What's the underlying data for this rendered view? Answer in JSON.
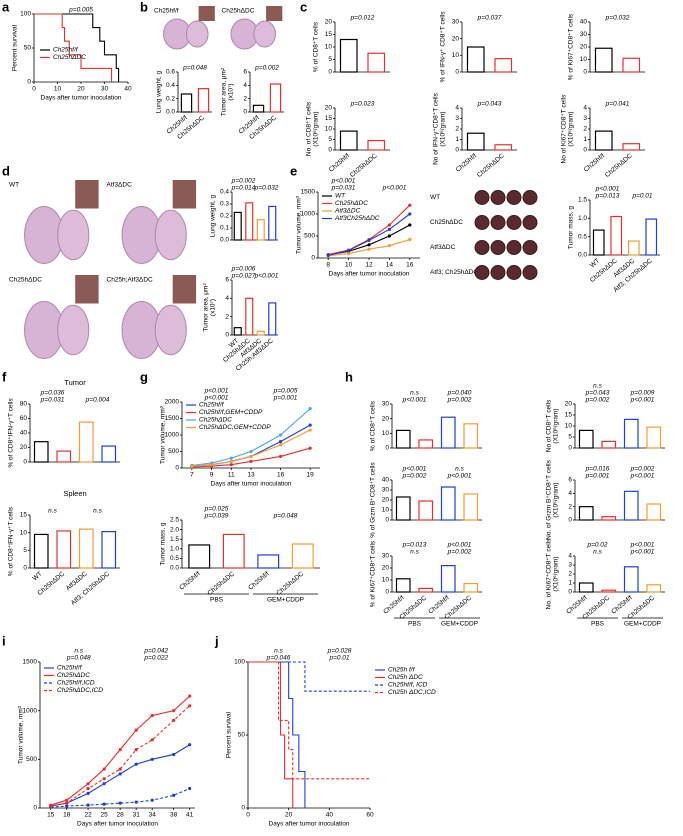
{
  "chart_data": [
    {
      "panel": "a",
      "type": "step",
      "ylabel": [
        "Percent survival"
      ],
      "xlabel": "Days after tumor inoculation",
      "xlim": [
        0,
        40
      ],
      "xticks": [
        0,
        10,
        20,
        30,
        40
      ],
      "ylim": [
        0,
        100
      ],
      "yticks": [
        0,
        50,
        100
      ],
      "annotations": [
        "p=0.005"
      ],
      "series": [
        {
          "name": "Ch25hf/f",
          "color": "#000000",
          "x": [
            0,
            25,
            28,
            30,
            35,
            36
          ],
          "values": [
            100,
            80,
            60,
            40,
            20,
            0
          ]
        },
        {
          "name": "Ch25hΔDC",
          "color": "#e8312f",
          "x": [
            0,
            12,
            13,
            15,
            20,
            33
          ],
          "values": [
            100,
            80,
            60,
            40,
            20,
            0
          ]
        }
      ]
    },
    {
      "panel": "b",
      "type": "image",
      "labels": [
        "Ch25hf/f",
        "Ch25hΔDC"
      ]
    },
    {
      "type": "bar",
      "ylabel": [
        "Lung weight, g"
      ],
      "categories": [
        "Ch25hf/f",
        "Ch25hΔDC"
      ],
      "values": [
        0.27,
        0.35
      ],
      "colors": [
        "#000000",
        "#e8312f"
      ],
      "ylim": [
        0,
        0.6
      ],
      "yticks": [
        {
          "value": 0,
          "label": "0.0"
        },
        0.2,
        0.4,
        0.6
      ],
      "annotations": [
        "p=0.048"
      ]
    },
    {
      "type": "bar",
      "ylabel": [
        "Tumor area, μm²",
        "(x10⁷)"
      ],
      "categories": [
        "Ch25hf/f",
        "Ch25hΔDC"
      ],
      "values": [
        1.0,
        4.2
      ],
      "colors": [
        "#000000",
        "#e8312f"
      ],
      "ylim": [
        0,
        6
      ],
      "yticks": [
        0,
        2,
        4,
        6
      ],
      "annotations": [
        "p=0.002"
      ]
    },
    {
      "panel": "c",
      "type": "bar",
      "ylabel": [
        "% of CD8⁺T cells"
      ],
      "values": [
        13,
        7.5
      ],
      "colors": [
        "#000000",
        "#e8312f"
      ],
      "ylim": [
        0,
        20
      ],
      "yticks": [
        0,
        5,
        10,
        15,
        20
      ],
      "annotations": [
        "p=0.012"
      ]
    },
    {
      "type": "bar",
      "ylabel": [
        "% of IFN-γ⁺ CD8⁺T cells"
      ],
      "values": [
        15,
        8
      ],
      "colors": [
        "#000000",
        "#e8312f"
      ],
      "ylim": [
        0,
        30
      ],
      "yticks": [
        0,
        10,
        20,
        30
      ],
      "annotations": [
        "p=0.037"
      ]
    },
    {
      "type": "bar",
      "ylabel": [
        "% of Ki67⁺CD8⁺T cells"
      ],
      "values": [
        19,
        11
      ],
      "colors": [
        "#000000",
        "#e8312f"
      ],
      "ylim": [
        0,
        40
      ],
      "yticks": [
        0,
        10,
        20,
        30,
        40
      ],
      "annotations": [
        "p=0.032"
      ]
    },
    {
      "type": "bar",
      "ylabel": [
        "No. of CD8⁺T cells",
        "(X10⁶/gram)"
      ],
      "categories": [
        "Ch25hf/f",
        "Ch25hΔDC"
      ],
      "values": [
        9,
        4.5
      ],
      "colors": [
        "#000000",
        "#e8312f"
      ],
      "ylim": [
        0,
        20
      ],
      "yticks": [
        0,
        5,
        10,
        15,
        20
      ],
      "annotations": [
        "p=0.023"
      ]
    },
    {
      "type": "bar",
      "ylabel": [
        "No of IFN-γ⁺CD8⁺T cells",
        "(X10⁶/gram)"
      ],
      "categories": [
        "Ch25hf/f",
        "Ch25hΔDC"
      ],
      "values": [
        1.6,
        0.5
      ],
      "colors": [
        "#000000",
        "#e8312f"
      ],
      "ylim": [
        0,
        4
      ],
      "yticks": [
        0,
        1,
        2,
        3,
        4
      ],
      "annotations": [
        "p=0.043"
      ]
    },
    {
      "type": "bar",
      "ylabel": [
        "No of Ki67⁺CD8⁺T cells",
        "(X10⁶/gram)"
      ],
      "categories": [
        "Ch25hf/f",
        "Ch25hΔDC"
      ],
      "values": [
        1.8,
        0.6
      ],
      "colors": [
        "#000000",
        "#e8312f"
      ],
      "ylim": [
        0,
        4
      ],
      "yticks": [
        0,
        1,
        2,
        3,
        4
      ],
      "annotations": [
        "p=0.041"
      ]
    },
    {
      "panel": "d",
      "type": "image",
      "labels": [
        "WT",
        "Atf3ΔDC",
        "Ch25hΔDC",
        "Ch25h;Atf3ΔDC"
      ]
    },
    {
      "type": "bar",
      "ylabel": [
        "Lung weight, g"
      ],
      "values": [
        0.23,
        0.31,
        0.17,
        0.28
      ],
      "colors": [
        "#000000",
        "#e8312f",
        "#f39c34",
        "#1f3fd6"
      ],
      "ylim": [
        0,
        0.4
      ],
      "yticks": [
        {
          "value": 0,
          "label": "0.0"
        },
        0.1,
        0.2,
        0.3,
        0.4
      ],
      "annotations": [
        "p=0.014",
        "p=0.032",
        "p=0.002"
      ]
    },
    {
      "type": "bar",
      "ylabel": [
        "Tumor area, μm²",
        "(x10⁷)"
      ],
      "categories": [
        "WT",
        "Ch25hΔDC",
        "Atf3ΔDC",
        "Ch25h;Atf3ΔDC"
      ],
      "values": [
        0.8,
        4.0,
        0.4,
        3.5
      ],
      "colors": [
        "#000000",
        "#e8312f",
        "#f39c34",
        "#1f3fd6"
      ],
      "ylim": [
        0,
        6
      ],
      "yticks": [
        0,
        2,
        4,
        6
      ],
      "annotations": [
        "p=0.027",
        "p<0.001",
        "p=0.006"
      ]
    },
    {
      "panel": "e",
      "type": "line",
      "ylabel": [
        "Tumor volume, mm³"
      ],
      "xlabel": "Days after tumor inoculation",
      "x": [
        8,
        10,
        12,
        14,
        16
      ],
      "xlim": [
        7,
        17
      ],
      "xticks": [
        8,
        10,
        12,
        14,
        16
      ],
      "ylim": [
        0,
        1500
      ],
      "yticks": [
        0,
        500,
        1000,
        1500
      ],
      "annotations": [
        "p=0.031",
        "p<0.001",
        "p<0.001"
      ],
      "series": [
        {
          "name": "WT",
          "color": "#000000",
          "values": [
            70,
            150,
            300,
            500,
            750
          ]
        },
        {
          "name": "Ch25hΔDC",
          "color": "#e8312f",
          "values": [
            80,
            180,
            420,
            750,
            1200
          ]
        },
        {
          "name": "Atf3ΔDC",
          "color": "#f39c34",
          "values": [
            50,
            100,
            200,
            280,
            420
          ]
        },
        {
          "name": "Atf3Ch25hΔDC",
          "color": "#1f3fd6",
          "values": [
            60,
            170,
            400,
            650,
            1000
          ]
        }
      ]
    },
    {
      "type": "image",
      "labels": [
        "WT",
        "Ch25hΔDC",
        "Atf3ΔDC",
        "Atf3; Ch25hΔDC"
      ]
    },
    {
      "type": "bar",
      "ylabel": [
        "Tumor mass, g"
      ],
      "categories": [
        "WT",
        "Ch25hΔDC",
        "Atf3ΔDC",
        "Atf3; Ch25hΔDC"
      ],
      "values": [
        0.68,
        1.05,
        0.38,
        0.98
      ],
      "colors": [
        "#000000",
        "#e8312f",
        "#f39c34",
        "#1f3fd6"
      ],
      "ylim": [
        0,
        1.5
      ],
      "yticks": [
        {
          "value": 0,
          "label": "0.0"
        },
        0.5,
        {
          "value": 1,
          "label": "1.0"
        },
        1.5
      ],
      "annotations": [
        "p=0.013",
        "p=0.01",
        "p<0.001"
      ]
    },
    {
      "panel": "f",
      "type": "bar",
      "title": "Tumor",
      "ylabel": [
        "% of CD8⁺IFN-γ⁺T cells"
      ],
      "values": [
        28,
        15,
        55,
        22
      ],
      "colors": [
        "#000000",
        "#e8312f",
        "#f39c34",
        "#1f3fd6"
      ],
      "ylim": [
        0,
        80
      ],
      "yticks": [
        0,
        20,
        40,
        60,
        80
      ],
      "annotations": [
        "p=0.031",
        "p=0.004",
        "p=0.036"
      ]
    },
    {
      "type": "bar",
      "title": "Spleen",
      "ylabel": [
        "% of CD8⁺IFN-γ⁺T cells"
      ],
      "categories": [
        "WT",
        "Ch25hΔDC",
        "Atf3ΔDC",
        "Atf3; Ch25hΔDC"
      ],
      "values": [
        9.5,
        10.5,
        11,
        10.3
      ],
      "colors": [
        "#000000",
        "#e8312f",
        "#f39c34",
        "#1f3fd6"
      ],
      "ylim": [
        0,
        15
      ],
      "yticks": [
        0,
        5,
        10,
        15
      ],
      "annotations": [
        "n.s",
        "n.s"
      ]
    },
    {
      "panel": "g",
      "type": "line",
      "ylabel": [
        "Tumor volume, mm³"
      ],
      "xlabel": "Days after tumor inoculation",
      "x": [
        7,
        9,
        11,
        13,
        16,
        19
      ],
      "xlim": [
        6,
        20
      ],
      "xticks": [
        7,
        9,
        11,
        13,
        16,
        19
      ],
      "ylim": [
        0,
        2000
      ],
      "yticks": [
        0,
        500,
        1000,
        1500,
        2000
      ],
      "annotations": [
        "p<0.001",
        "p=0.001",
        "p<0.001",
        "p=0.005"
      ],
      "series": [
        {
          "name": "Ch25hf/f",
          "color": "#1f3fd6",
          "values": [
            50,
            100,
            200,
            350,
            800,
            1300
          ]
        },
        {
          "name": "Ch25hf/f,GEM+CDDP",
          "color": "#e8312f",
          "values": [
            30,
            60,
            100,
            200,
            350,
            600
          ]
        },
        {
          "name": "Ch25hΔDC",
          "color": "#4fa3e8",
          "values": [
            80,
            150,
            300,
            500,
            1000,
            1800
          ]
        },
        {
          "name": "Ch25hΔDC,GEM+CDDP",
          "color": "#f39c34",
          "values": [
            50,
            100,
            200,
            350,
            700,
            1150
          ]
        }
      ]
    },
    {
      "type": "bar",
      "ylabel": [
        "Tumor mass, g"
      ],
      "categories": [
        "Ch25hf/f",
        "Ch25hΔDC",
        "Ch25hf/f",
        "Ch25hΔDC"
      ],
      "groups": [
        "PBS",
        "GEM+CDDP"
      ],
      "values": [
        1.2,
        1.75,
        0.68,
        1.25
      ],
      "colors": [
        "#000000",
        "#e8312f",
        "#1f3fd6",
        "#f39c34"
      ],
      "ylim": [
        0,
        2.5
      ],
      "yticks": [
        {
          "value": 0,
          "label": "0.0"
        },
        0.5,
        {
          "value": 1,
          "label": "1.0"
        },
        1.5,
        {
          "value": 2,
          "label": "2.0"
        },
        2.5
      ],
      "annotations": [
        "p=0.039",
        "p=0.048",
        "p=0.025"
      ]
    },
    {
      "panel": "h",
      "type": "bar",
      "ylabel": [
        "% of CD8⁺T cells"
      ],
      "values": [
        12,
        5.5,
        21,
        16.5
      ],
      "colors": [
        "#000000",
        "#e8312f",
        "#1f3fd6",
        "#f39c34"
      ],
      "ylim": [
        0,
        30
      ],
      "yticks": [
        0,
        10,
        20,
        30
      ],
      "annotations": [
        "p<0.001",
        "p=0.002",
        "n.s",
        "p=0.040"
      ]
    },
    {
      "type": "bar",
      "ylabel": [
        "No of CD8⁺T cells",
        "(X10⁶/gram)"
      ],
      "values": [
        8,
        3,
        13,
        9.5
      ],
      "colors": [
        "#000000",
        "#e8312f",
        "#1f3fd6",
        "#f39c34"
      ],
      "ylim": [
        0,
        20
      ],
      "yticks": [
        0,
        5,
        10,
        15,
        20
      ],
      "annotations": [
        "p=0.002",
        "p<0.001",
        "p=0.043",
        "p=0.009",
        "n.s"
      ]
    },
    {
      "type": "bar",
      "ylabel": [
        "% of Grzm B⁺CD8⁺T cells"
      ],
      "values": [
        23,
        19,
        33,
        26
      ],
      "colors": [
        "#000000",
        "#e8312f",
        "#1f3fd6",
        "#f39c34"
      ],
      "ylim": [
        0,
        40
      ],
      "yticks": [
        0,
        10,
        20,
        30,
        40
      ],
      "annotations": [
        "p=0.002",
        "p<0.001",
        "p<0.001",
        "n.s"
      ]
    },
    {
      "type": "bar",
      "ylabel": [
        "No. of Grzm B⁺CD8⁺T cells",
        "(X10⁶/gram)"
      ],
      "values": [
        2,
        0.5,
        4.3,
        2.4
      ],
      "colors": [
        "#000000",
        "#e8312f",
        "#1f3fd6",
        "#f39c34"
      ],
      "ylim": [
        0,
        6
      ],
      "yticks": [
        0,
        2,
        4,
        6
      ],
      "annotations": [
        "p=0.001",
        "p<0.001",
        "p=0.016",
        "p=0.002"
      ]
    },
    {
      "type": "bar",
      "ylabel": [
        "% of Ki67⁺CD8⁺T cells"
      ],
      "categories": [
        "Ch25hf/f",
        "Ch25hΔDC",
        "Ch25hf/f",
        "Ch25hΔDC"
      ],
      "groups": [
        "PBS",
        "GEM+CDDP"
      ],
      "values": [
        11,
        3,
        22,
        7
      ],
      "colors": [
        "#000000",
        "#e8312f",
        "#1f3fd6",
        "#f39c34"
      ],
      "ylim": [
        0,
        30
      ],
      "yticks": [
        0,
        10,
        20,
        30
      ],
      "annotations": [
        "n.s",
        "p=0.002",
        "p=0.013",
        "p<0.001"
      ]
    },
    {
      "type": "bar",
      "ylabel": [
        "No. of Ki67⁺CD8⁺T cells",
        "(X10⁶/gram)"
      ],
      "categories": [
        "Ch25hf/f",
        "Ch25hΔDC",
        "Ch25hf/f",
        "Ch25hΔDC"
      ],
      "groups": [
        "PBS",
        "GEM+CDDP"
      ],
      "values": [
        1,
        0.2,
        2.8,
        0.8
      ],
      "colors": [
        "#000000",
        "#e8312f",
        "#1f3fd6",
        "#f39c34"
      ],
      "ylim": [
        0,
        4
      ],
      "yticks": [
        0,
        1,
        2,
        3,
        4
      ],
      "annotations": [
        "n.s",
        "p<0.001",
        "p=0.02",
        "p<0.001"
      ]
    },
    {
      "panel": "i",
      "type": "line",
      "ylabel": [
        "Tumor volume, mm³"
      ],
      "xlabel": "Days after tumor inoculation",
      "x": [
        15,
        18,
        22,
        25,
        28,
        31,
        34,
        38,
        41
      ],
      "xlim": [
        13,
        42
      ],
      "xticks": [
        15,
        18,
        22,
        25,
        28,
        31,
        34,
        38,
        41
      ],
      "ylim": [
        0,
        1500
      ],
      "yticks": [
        0,
        500,
        1000,
        1500
      ],
      "annotations": [
        "p=0.048",
        "p=0.022",
        "n.s",
        "p=0.042"
      ],
      "series": [
        {
          "name": "Ch25hf/f",
          "color": "#1f3fd6",
          "values": [
            20,
            50,
            150,
            250,
            350,
            450,
            500,
            550,
            650
          ]
        },
        {
          "name": "Ch25hΔDC",
          "color": "#e8312f",
          "values": [
            30,
            80,
            250,
            400,
            600,
            800,
            950,
            1000,
            1150
          ]
        },
        {
          "name": "Ch25hf/f,ICD",
          "color": "#1f3fd6",
          "dashed": true,
          "values": [
            10,
            20,
            30,
            40,
            50,
            60,
            80,
            130,
            200
          ]
        },
        {
          "name": "Ch25hΔDC,ICD",
          "color": "#e8312f",
          "dashed": true,
          "values": [
            20,
            50,
            200,
            300,
            400,
            600,
            700,
            900,
            1050
          ]
        }
      ]
    },
    {
      "panel": "j",
      "type": "step",
      "ylabel": [
        "Percent survival"
      ],
      "xlabel": "Days after tumor inoculation",
      "xlim": [
        0,
        60
      ],
      "xticks": [
        0,
        20,
        40,
        60
      ],
      "ylim": [
        0,
        100
      ],
      "yticks": [
        0,
        50,
        100
      ],
      "annotations": [
        "p=0.046",
        "p=0.01",
        "n.s",
        "p=0.028"
      ],
      "series": [
        {
          "name": "Ch25h f/f",
          "color": "#1f3fd6",
          "x": [
            0,
            20,
            22,
            25,
            28
          ],
          "values": [
            100,
            75,
            50,
            25,
            0
          ]
        },
        {
          "name": "Ch25h ΔDC",
          "color": "#e8312f",
          "x": [
            0,
            16,
            18,
            22
          ],
          "values": [
            100,
            50,
            20,
            0
          ]
        },
        {
          "name": "Ch25hf/f, ICD",
          "color": "#1f3fd6",
          "dashed": true,
          "x": [
            0,
            28,
            60
          ],
          "values": [
            100,
            80,
            80
          ]
        },
        {
          "name": "Ch25h ΔDC,ICD",
          "color": "#e8312f",
          "dashed": true,
          "x": [
            0,
            15,
            20,
            22,
            60
          ],
          "values": [
            100,
            60,
            40,
            20,
            20
          ]
        }
      ]
    }
  ]
}
